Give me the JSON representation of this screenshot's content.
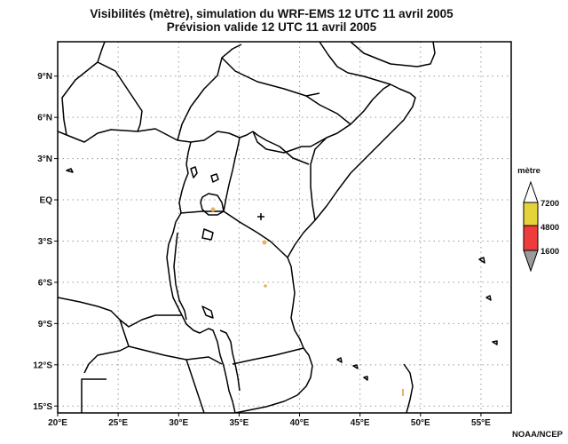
{
  "title_line1": "Visibilités (mètre), simulation du WRF-EMS 12 UTC 11 avril 2005",
  "title_line2": "Prévision valide 12 UTC 11 avril 2005",
  "credit": "NOAA/NCEP",
  "map": {
    "lon_range": [
      20,
      57.5
    ],
    "lat_range": [
      -15.5,
      11.5
    ],
    "grid_lines": true,
    "lon_labels": [
      {
        "value": 20,
        "label": "20°E"
      },
      {
        "value": 25,
        "label": "25°E"
      },
      {
        "value": 30,
        "label": "30°E"
      },
      {
        "value": 35,
        "label": "35°E"
      },
      {
        "value": 40,
        "label": "40°E"
      },
      {
        "value": 45,
        "label": "45°E"
      },
      {
        "value": 50,
        "label": "50°E"
      },
      {
        "value": 55,
        "label": "55°E"
      }
    ],
    "lat_labels": [
      {
        "value": 9,
        "label": "9°N"
      },
      {
        "value": 6,
        "label": "6°N"
      },
      {
        "value": 3,
        "label": "3°N"
      },
      {
        "value": 0,
        "label": "EQ"
      },
      {
        "value": -3,
        "label": "3°S"
      },
      {
        "value": -6,
        "label": "6°S"
      },
      {
        "value": -9,
        "label": "9°S"
      },
      {
        "value": -12,
        "label": "12°S"
      },
      {
        "value": -15,
        "label": "15°S"
      }
    ]
  },
  "legend": {
    "title": "mètre",
    "levels": [
      {
        "label": "7200",
        "color": "#e4d43a"
      },
      {
        "label": "4800",
        "color": "#ee3b3b"
      },
      {
        "label": "1600",
        "color": "#9a9a9a"
      }
    ]
  },
  "colors": {
    "border": "#000000",
    "grid": "#9a9a9a",
    "low_visibility_spot": "#e8b060"
  }
}
